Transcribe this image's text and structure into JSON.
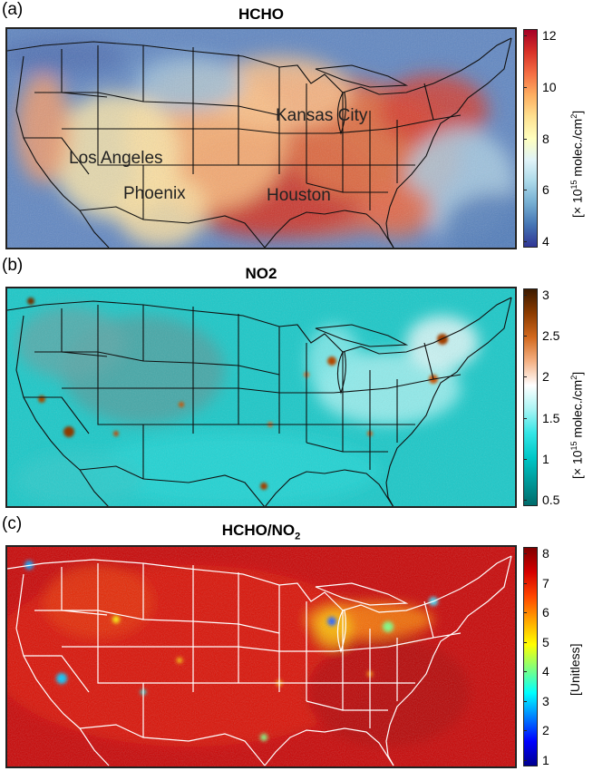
{
  "panels": [
    {
      "label": "(a)",
      "title": "HCHO",
      "colorbar": {
        "ticks": [
          "12",
          "10",
          "8",
          "6",
          "4"
        ],
        "label_prefix": "[× 10",
        "label_exp": "15",
        "label_mid": " molec./cm",
        "label_exp2": "2",
        "label_suffix": "]",
        "colors": [
          "#a50026",
          "#d73027",
          "#f46d43",
          "#fdae61",
          "#fee090",
          "#ffffbf",
          "#e0f3f8",
          "#abd9e9",
          "#74add1",
          "#4575b4",
          "#313695"
        ]
      },
      "cities": [
        "Kansas City",
        "Los Angeles",
        "Phoenix",
        "Houston"
      ]
    },
    {
      "label": "(b)",
      "title": "NO2",
      "colorbar": {
        "ticks": [
          "3",
          "2.5",
          "2",
          "1.5",
          "1",
          "0.5"
        ],
        "label_prefix": "[× 10",
        "label_exp": "15",
        "label_mid": " molec./cm",
        "label_exp2": "2",
        "label_suffix": "]",
        "colors": [
          "#3d1a00",
          "#8c3b00",
          "#d2691e",
          "#f4b183",
          "#ffffff",
          "#aaf4f4",
          "#33e6e6",
          "#00c8c8",
          "#009a9a",
          "#006b6b"
        ]
      }
    },
    {
      "label": "(c)",
      "title_main": "HCHO/NO",
      "title_sub": "2",
      "colorbar": {
        "ticks": [
          "8",
          "7",
          "6",
          "5",
          "4",
          "3",
          "2",
          "1"
        ],
        "label": "[Unitless]",
        "colors": [
          "#800000",
          "#d40000",
          "#ff4500",
          "#ffa500",
          "#ffff00",
          "#7fff7f",
          "#00ffff",
          "#0080ff",
          "#0000ff",
          "#00008f"
        ]
      }
    }
  ]
}
